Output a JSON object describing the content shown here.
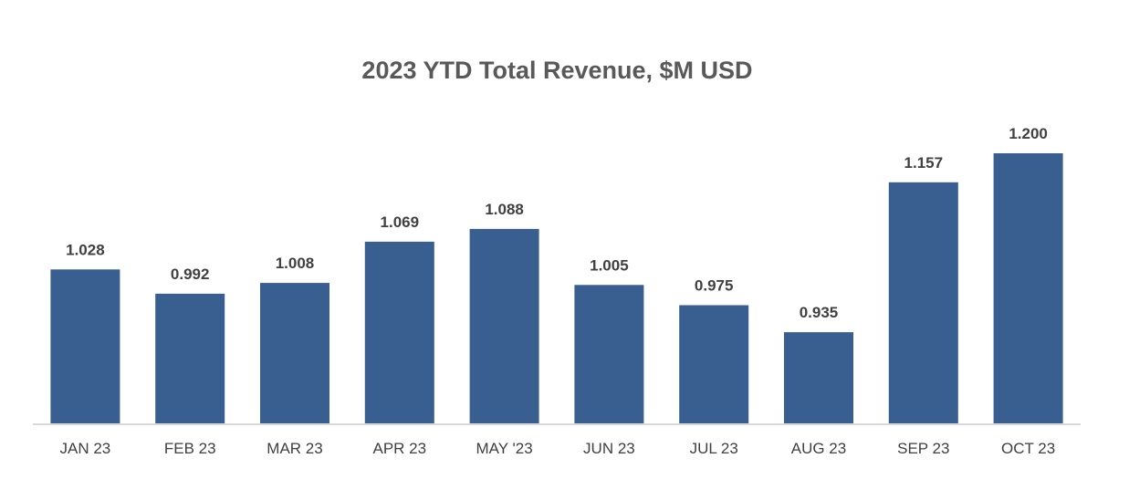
{
  "chart_data": {
    "type": "bar",
    "title": "2023 YTD Total Revenue, $M USD",
    "xlabel": "",
    "ylabel": "",
    "categories": [
      "JAN 23",
      "FEB 23",
      "MAR 23",
      "APR 23",
      "MAY '23",
      "JUN 23",
      "JUL 23",
      "AUG 23",
      "SEP 23",
      "OCT 23"
    ],
    "values": [
      1.028,
      0.992,
      1.008,
      1.069,
      1.088,
      1.005,
      0.975,
      0.935,
      1.157,
      1.2
    ],
    "value_labels": [
      "1.028",
      "0.992",
      "1.008",
      "1.069",
      "1.088",
      "1.005",
      "0.975",
      "0.935",
      "1.157",
      "1.200"
    ],
    "ylim": [
      0.8,
      1.2
    ],
    "grid": false,
    "legend": "none",
    "colors": {
      "bar": "#385F8F",
      "axis": "#D9D9D9",
      "title": "#595959",
      "text": "#404040"
    }
  }
}
